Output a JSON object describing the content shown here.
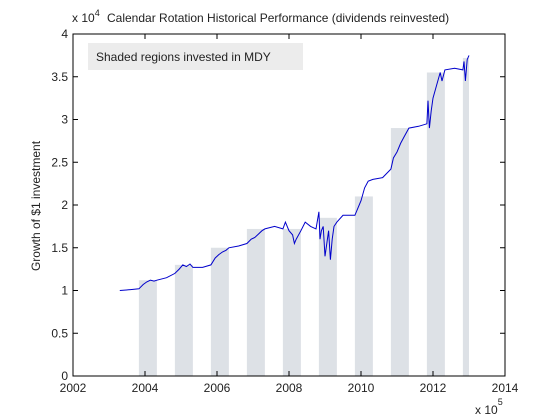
{
  "chart_data": {
    "type": "line",
    "title": "Calendar Rotation Historical Performance (dividends reinvested)",
    "ylabel": "Growth of $1 investment",
    "xlabel": "",
    "y_multiplier": {
      "base": "x 10",
      "exp": "4"
    },
    "x_multiplier": {
      "base": "x 10",
      "exp": "5"
    },
    "annotation": "Shaded regions invested in MDY",
    "xlim": [
      2002,
      2014
    ],
    "ylim": [
      0,
      4
    ],
    "x_ticks": [
      2002,
      2004,
      2006,
      2008,
      2010,
      2012,
      2014
    ],
    "y_ticks": [
      0,
      0.5,
      1,
      1.5,
      2,
      2.5,
      3,
      3.5,
      4
    ],
    "x_tick_labels": [
      "2002",
      "2004",
      "2006",
      "2008",
      "2010",
      "2012",
      "2014"
    ],
    "y_tick_labels": [
      "0",
      "0.5",
      "1",
      "1.5",
      "2",
      "2.5",
      "3",
      "3.5",
      "4"
    ],
    "line_color": "#0000cc",
    "shade_color": "#dde1e6",
    "shaded_regions": [
      {
        "start": 2003.83,
        "end": 2004.33,
        "top": 1.12
      },
      {
        "start": 2004.83,
        "end": 2005.33,
        "top": 1.3
      },
      {
        "start": 2005.83,
        "end": 2006.33,
        "top": 1.5
      },
      {
        "start": 2006.83,
        "end": 2007.33,
        "top": 1.72
      },
      {
        "start": 2007.83,
        "end": 2008.33,
        "top": 1.72
      },
      {
        "start": 2008.83,
        "end": 2009.33,
        "top": 1.85
      },
      {
        "start": 2009.83,
        "end": 2010.33,
        "top": 2.1
      },
      {
        "start": 2010.83,
        "end": 2011.33,
        "top": 2.9
      },
      {
        "start": 2011.83,
        "end": 2012.33,
        "top": 3.55
      },
      {
        "start": 2012.83,
        "end": 2013.0,
        "top": 3.72
      }
    ],
    "series": [
      {
        "x": [
          2003.3,
          2003.6,
          2003.83,
          2003.95,
          2004.05,
          2004.15,
          2004.25,
          2004.33,
          2004.6,
          2004.83,
          2004.95,
          2005.05,
          2005.15,
          2005.25,
          2005.33,
          2005.6,
          2005.83,
          2005.95,
          2006.05,
          2006.15,
          2006.25,
          2006.33,
          2006.6,
          2006.83,
          2006.95,
          2007.05,
          2007.15,
          2007.25,
          2007.33,
          2007.6,
          2007.83,
          2007.9,
          2008.0,
          2008.1,
          2008.15,
          2008.2,
          2008.33,
          2008.45,
          2008.6,
          2008.75,
          2008.83,
          2008.86,
          2008.9,
          2008.95,
          2009.0,
          2009.05,
          2009.1,
          2009.15,
          2009.2,
          2009.25,
          2009.33,
          2009.5,
          2009.83,
          2009.9,
          2010.0,
          2010.1,
          2010.2,
          2010.33,
          2010.6,
          2010.83,
          2010.9,
          2011.0,
          2011.1,
          2011.2,
          2011.33,
          2011.6,
          2011.83,
          2011.86,
          2011.9,
          2011.95,
          2012.0,
          2012.1,
          2012.2,
          2012.25,
          2012.33,
          2012.6,
          2012.83,
          2012.86,
          2012.9,
          2012.95,
          2013.0
        ],
        "y": [
          1.0,
          1.01,
          1.02,
          1.07,
          1.1,
          1.12,
          1.11,
          1.12,
          1.15,
          1.2,
          1.25,
          1.3,
          1.28,
          1.31,
          1.27,
          1.27,
          1.3,
          1.38,
          1.42,
          1.45,
          1.47,
          1.5,
          1.52,
          1.55,
          1.6,
          1.62,
          1.66,
          1.7,
          1.72,
          1.75,
          1.72,
          1.8,
          1.7,
          1.65,
          1.55,
          1.6,
          1.7,
          1.8,
          1.75,
          1.72,
          1.92,
          1.6,
          1.7,
          1.75,
          1.4,
          1.55,
          1.7,
          1.36,
          1.6,
          1.75,
          1.8,
          1.88,
          1.88,
          1.95,
          2.05,
          2.2,
          2.28,
          2.3,
          2.32,
          2.42,
          2.55,
          2.62,
          2.72,
          2.8,
          2.9,
          2.92,
          2.95,
          3.22,
          2.9,
          3.1,
          3.25,
          3.4,
          3.55,
          3.45,
          3.58,
          3.6,
          3.58,
          3.68,
          3.45,
          3.7,
          3.75
        ]
      }
    ]
  }
}
